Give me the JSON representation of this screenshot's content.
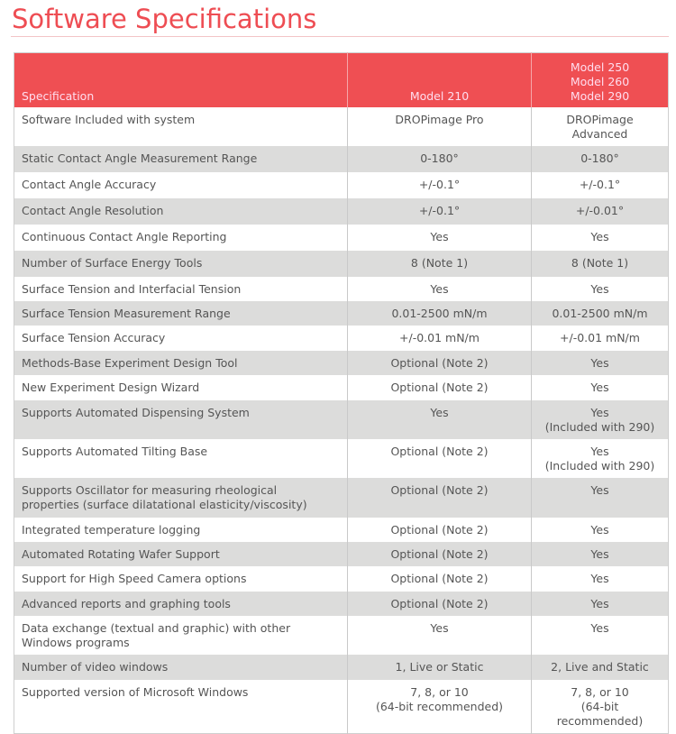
{
  "title": "Software Specifications",
  "header": [
    "Specification",
    "Model 210",
    "Model 250\nModel 260\nModel 290"
  ],
  "rows": [
    [
      "Software Included with system",
      "DROPimage Pro",
      "DROPimage Advanced"
    ],
    [
      "Static Contact Angle Measurement Range",
      "0-180°",
      "0-180°"
    ],
    [
      "Contact Angle Accuracy",
      "+/-0.1°",
      "+/-0.1°"
    ],
    [
      "Contact Angle Resolution",
      "+/-0.1°",
      "+/-0.01°"
    ],
    [
      "Continuous Contact Angle Reporting",
      "Yes",
      "Yes"
    ],
    [
      "Number of Surface Energy Tools",
      "8 (Note 1)",
      "8 (Note 1)"
    ],
    [
      "Surface Tension and Interfacial Tension",
      "Yes",
      "Yes"
    ],
    [
      "Surface Tension Measurement Range",
      "0.01-2500 mN/m",
      "0.01-2500 mN/m"
    ],
    [
      "Surface Tension Accuracy",
      "+/-0.01 mN/m",
      "+/-0.01 mN/m"
    ],
    [
      "Methods-Base Experiment Design Tool",
      "Optional (Note 2)",
      "Yes"
    ],
    [
      "New Experiment Design Wizard",
      "Optional (Note 2)",
      "Yes"
    ],
    [
      "Supports Automated Dispensing System",
      "Yes",
      "Yes\n(Included with 290)"
    ],
    [
      "Supports Automated Tilting Base",
      "Optional (Note 2)",
      "Yes\n(Included with 290)"
    ],
    [
      "Supports Oscillator for measuring rheological\nproperties (surface dilatational elasticity/viscosity)",
      "Optional (Note 2)",
      "Yes"
    ],
    [
      "Integrated temperature logging",
      "Optional (Note 2)",
      "Yes"
    ],
    [
      "Automated Rotating Wafer Support",
      "Optional (Note 2)",
      "Yes"
    ],
    [
      "Support for High Speed Camera options",
      "Optional (Note 2)",
      "Yes"
    ],
    [
      "Advanced reports and graphing tools",
      "Optional (Note 2)",
      "Yes"
    ],
    [
      "Data exchange (textual and graphic) with other\nWindows programs",
      "Yes",
      "Yes"
    ],
    [
      "Number of video windows",
      "1, Live or Static",
      "2, Live and Static"
    ],
    [
      "Supported version of Microsoft Windows",
      "7, 8, or 10\n(64-bit recommended)",
      "7, 8, or 10\n(64-bit recommended)"
    ]
  ],
  "colors": {
    "accent": "#ef4f53",
    "stripe": "#dcdcdb"
  }
}
